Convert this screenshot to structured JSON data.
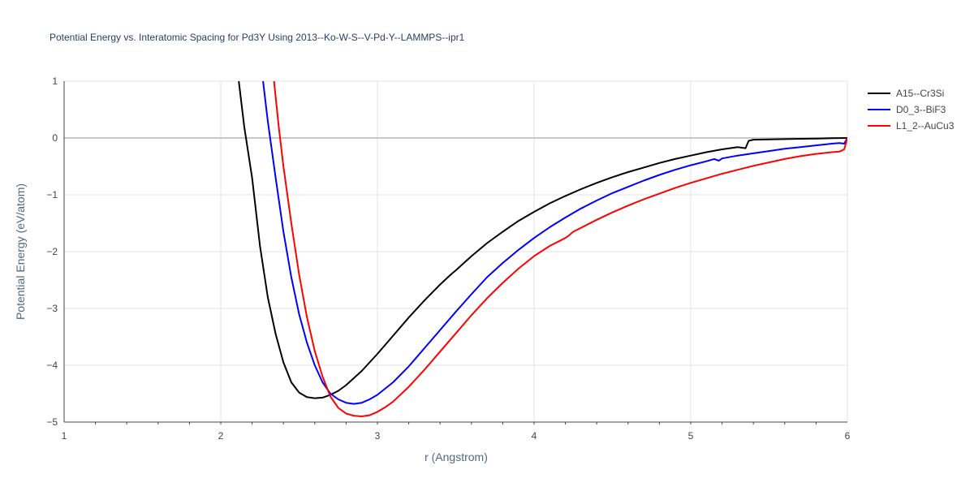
{
  "chart_data": {
    "type": "line",
    "title": "Potential Energy vs. Interatomic Spacing for Pd3Y Using 2013--Ko-W-S--V-Pd-Y--LAMMPS--ipr1",
    "xlabel": "r (Angstrom)",
    "ylabel": "Potential Energy (eV/atom)",
    "xlim": [
      1,
      6
    ],
    "ylim": [
      -5,
      1
    ],
    "xticks": [
      1,
      2,
      3,
      4,
      5,
      6
    ],
    "yticks": [
      1,
      0,
      -1,
      -2,
      -3,
      -4,
      -5
    ],
    "ytick_labels": [
      "1",
      "0",
      "−1",
      "−2",
      "−3",
      "−4",
      "−5"
    ],
    "grid": true,
    "legend_position": "top-right",
    "series": [
      {
        "name": "A15--Cr3Si",
        "color": "#000000",
        "x": [
          2.115,
          2.15,
          2.2,
          2.25,
          2.3,
          2.35,
          2.4,
          2.45,
          2.5,
          2.55,
          2.6,
          2.65,
          2.7,
          2.75,
          2.8,
          2.9,
          3.0,
          3.1,
          3.2,
          3.3,
          3.4,
          3.45,
          3.47,
          3.5,
          3.6,
          3.7,
          3.8,
          3.9,
          4.0,
          4.1,
          4.2,
          4.3,
          4.4,
          4.5,
          4.6,
          4.7,
          4.8,
          4.9,
          5.0,
          5.1,
          5.2,
          5.3,
          5.35,
          5.37,
          5.4,
          5.5,
          5.6,
          5.7,
          5.8,
          5.9,
          6.0
        ],
        "y": [
          1.0,
          0.2,
          -0.7,
          -1.9,
          -2.8,
          -3.45,
          -3.95,
          -4.3,
          -4.48,
          -4.56,
          -4.58,
          -4.57,
          -4.52,
          -4.45,
          -4.35,
          -4.1,
          -3.8,
          -3.48,
          -3.16,
          -2.86,
          -2.58,
          -2.45,
          -2.4,
          -2.33,
          -2.08,
          -1.85,
          -1.65,
          -1.46,
          -1.3,
          -1.15,
          -1.02,
          -0.9,
          -0.79,
          -0.69,
          -0.6,
          -0.52,
          -0.44,
          -0.37,
          -0.31,
          -0.25,
          -0.2,
          -0.16,
          -0.18,
          -0.05,
          -0.03,
          -0.025,
          -0.02,
          -0.015,
          -0.01,
          -0.005,
          0.0
        ]
      },
      {
        "name": "D0_3--BiF3",
        "color": "#0000ff",
        "x": [
          2.27,
          2.3,
          2.35,
          2.4,
          2.45,
          2.5,
          2.55,
          2.6,
          2.65,
          2.7,
          2.75,
          2.8,
          2.85,
          2.9,
          2.95,
          3.0,
          3.1,
          3.2,
          3.3,
          3.4,
          3.5,
          3.6,
          3.7,
          3.8,
          3.9,
          4.0,
          4.1,
          4.2,
          4.3,
          4.4,
          4.5,
          4.6,
          4.7,
          4.8,
          4.9,
          5.0,
          5.1,
          5.15,
          5.18,
          5.2,
          5.3,
          5.4,
          5.5,
          5.6,
          5.7,
          5.8,
          5.9,
          5.95,
          5.98,
          6.0
        ],
        "y": [
          1.0,
          0.3,
          -0.7,
          -1.65,
          -2.45,
          -3.1,
          -3.6,
          -4.0,
          -4.3,
          -4.5,
          -4.6,
          -4.66,
          -4.68,
          -4.66,
          -4.6,
          -4.52,
          -4.3,
          -4.02,
          -3.7,
          -3.38,
          -3.06,
          -2.75,
          -2.45,
          -2.2,
          -1.97,
          -1.76,
          -1.57,
          -1.4,
          -1.24,
          -1.1,
          -0.97,
          -0.86,
          -0.75,
          -0.65,
          -0.56,
          -0.48,
          -0.41,
          -0.37,
          -0.4,
          -0.36,
          -0.31,
          -0.27,
          -0.23,
          -0.19,
          -0.16,
          -0.13,
          -0.1,
          -0.09,
          -0.1,
          0.0
        ]
      },
      {
        "name": "L1_2--AuCu3",
        "color": "#ff0000",
        "x": [
          2.34,
          2.37,
          2.4,
          2.45,
          2.5,
          2.55,
          2.6,
          2.65,
          2.7,
          2.75,
          2.8,
          2.85,
          2.9,
          2.95,
          3.0,
          3.05,
          3.1,
          3.2,
          3.3,
          3.4,
          3.5,
          3.6,
          3.7,
          3.8,
          3.9,
          4.0,
          4.1,
          4.2,
          4.22,
          4.25,
          4.3,
          4.4,
          4.5,
          4.6,
          4.7,
          4.8,
          4.9,
          5.0,
          5.1,
          5.2,
          5.3,
          5.4,
          5.5,
          5.6,
          5.7,
          5.8,
          5.9,
          5.95,
          5.98,
          6.0
        ],
        "y": [
          1.0,
          0.2,
          -0.5,
          -1.5,
          -2.4,
          -3.15,
          -3.75,
          -4.2,
          -4.55,
          -4.75,
          -4.85,
          -4.89,
          -4.9,
          -4.88,
          -4.82,
          -4.74,
          -4.64,
          -4.38,
          -4.08,
          -3.76,
          -3.44,
          -3.12,
          -2.82,
          -2.55,
          -2.3,
          -2.08,
          -1.9,
          -1.76,
          -1.72,
          -1.65,
          -1.58,
          -1.44,
          -1.31,
          -1.19,
          -1.08,
          -0.98,
          -0.88,
          -0.79,
          -0.71,
          -0.63,
          -0.56,
          -0.49,
          -0.43,
          -0.37,
          -0.32,
          -0.28,
          -0.25,
          -0.24,
          -0.2,
          0.0
        ]
      }
    ]
  }
}
